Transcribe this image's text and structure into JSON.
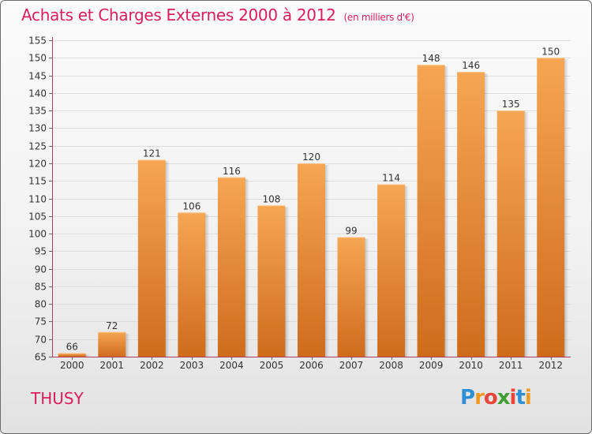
{
  "header": {
    "title": "Achats et Charges Externes 2000 à 2012",
    "unit": "(en milliers d'€)"
  },
  "footer": {
    "place": "THUSY",
    "logo_letters": [
      "P",
      "r",
      "o",
      "x",
      "i",
      "t",
      "i"
    ],
    "logo_colors": [
      "#2f8fd4",
      "#f29a1f",
      "#e8463a",
      "#3f9f35",
      "#e8463a",
      "#2f8fd4",
      "#f29a1f"
    ]
  },
  "colors": {
    "title": "#d81e5b",
    "bar_top": "#f6a652",
    "bar_bottom": "#cf6c1c",
    "axis": "#b23a5e"
  },
  "chart_data": {
    "type": "bar",
    "title": "Achats et Charges Externes 2000 à 2012",
    "subtitle": "(en milliers d'€)",
    "xlabel": "",
    "ylabel": "",
    "categories": [
      "2000",
      "2001",
      "2002",
      "2003",
      "2004",
      "2005",
      "2006",
      "2007",
      "2008",
      "2009",
      "2010",
      "2011",
      "2012"
    ],
    "values": [
      66,
      72,
      121,
      106,
      116,
      108,
      120,
      99,
      114,
      148,
      146,
      135,
      150
    ],
    "ylim": [
      65,
      155
    ],
    "yticks": [
      65,
      70,
      75,
      80,
      85,
      90,
      95,
      100,
      105,
      110,
      115,
      120,
      125,
      130,
      135,
      140,
      145,
      150,
      155
    ],
    "grid": true,
    "data_labels": true
  }
}
